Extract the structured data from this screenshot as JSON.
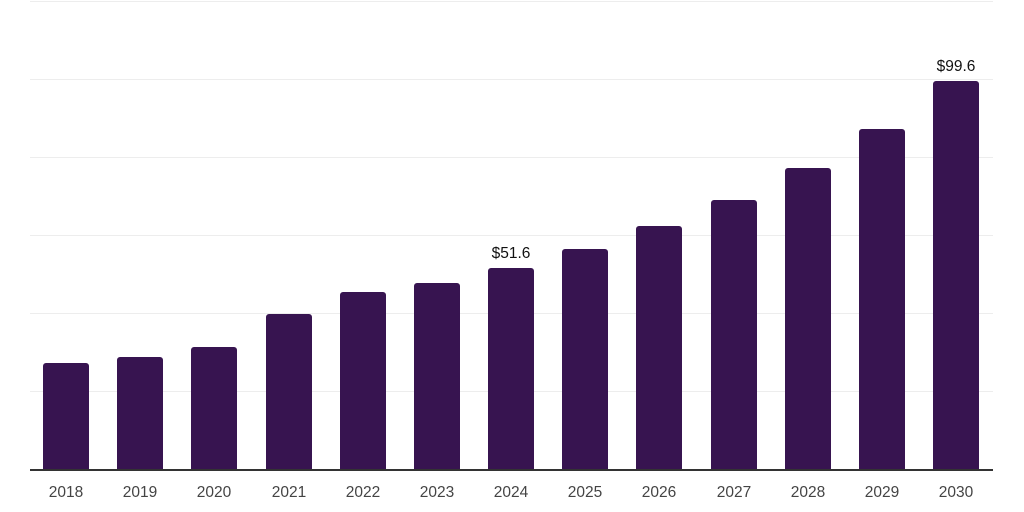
{
  "chart_data": {
    "type": "bar",
    "title": "",
    "xlabel": "",
    "ylabel": "",
    "categories": [
      "2018",
      "2019",
      "2020",
      "2021",
      "2022",
      "2023",
      "2024",
      "2025",
      "2026",
      "2027",
      "2028",
      "2029",
      "2030"
    ],
    "values": [
      27.1,
      28.8,
      31.2,
      39.7,
      45.4,
      47.7,
      51.6,
      56.3,
      62.2,
      68.9,
      77.1,
      87.3,
      99.6
    ],
    "data_labels": [
      "",
      "",
      "",
      "",
      "",
      "",
      "$51.6",
      "",
      "",
      "",
      "",
      "",
      "$99.6"
    ],
    "ylim": [
      0,
      120
    ],
    "y_tick_interval": 20,
    "y_axis_labels_visible": false,
    "grid": "horizontal",
    "legend": "none",
    "currency_prefix": "$"
  },
  "colors": {
    "background": "#ffffff",
    "bar": "#371450",
    "gridline": "#ededed",
    "axis_line": "#333333",
    "x_tick_label": "#444444",
    "data_label": "#111111"
  }
}
